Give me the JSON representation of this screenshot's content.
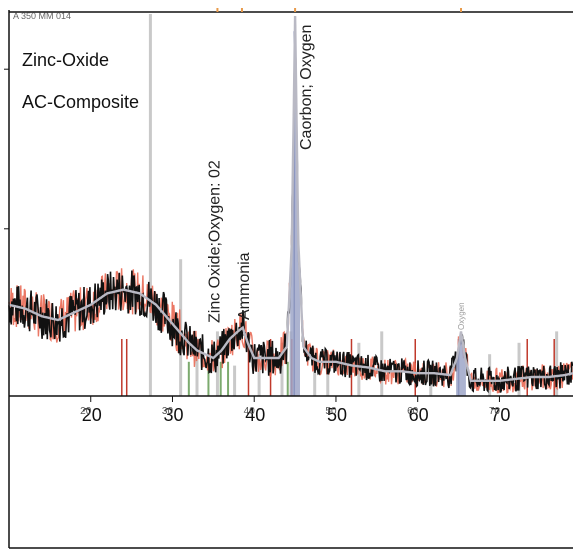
{
  "chart_data": {
    "type": "line",
    "header_label": "A 350 MM 014",
    "legend": [
      "Zinc-Oxide",
      "AC-Composite"
    ],
    "xlim": [
      10,
      79
    ],
    "ylim": [
      0,
      100
    ],
    "x_ticks": [
      20,
      30,
      40,
      50,
      60,
      70
    ],
    "x_tick_labels": [
      "20",
      "30",
      "40",
      "50",
      "60",
      "70"
    ],
    "minor_x_ticks": [
      20,
      30,
      40,
      50,
      60,
      70
    ],
    "minor_x_tick_labels": [
      "20",
      "30",
      "40",
      "50",
      "60",
      "70"
    ],
    "series": [],
    "annotations": [
      {
        "x": 45.0,
        "text": "Caorbon; Oxygen",
        "color": "#222222"
      },
      {
        "x": 35.0,
        "text": "Zinc Oxide;Oxygen: 02",
        "color": "#222222"
      },
      {
        "x": 38.6,
        "text": "Ammonia",
        "color": "#222222"
      },
      {
        "x": 65.3,
        "text": "Oxygen",
        "color": "#999999"
      }
    ],
    "smooth_curve": [
      [
        10,
        24
      ],
      [
        12,
        23
      ],
      [
        14,
        21
      ],
      [
        16,
        20
      ],
      [
        18,
        22
      ],
      [
        20,
        24
      ],
      [
        22,
        27
      ],
      [
        24,
        28
      ],
      [
        26,
        27
      ],
      [
        28,
        24
      ],
      [
        30,
        19
      ],
      [
        32,
        14
      ],
      [
        33,
        12
      ],
      [
        34,
        11
      ],
      [
        35,
        10
      ],
      [
        36,
        12
      ],
      [
        37,
        15
      ],
      [
        38,
        17
      ],
      [
        38.6,
        18
      ],
      [
        39.2,
        14
      ],
      [
        40,
        10
      ],
      [
        41,
        10
      ],
      [
        42,
        10
      ],
      [
        43,
        10
      ],
      [
        44,
        13
      ],
      [
        44.6,
        40
      ],
      [
        45.0,
        100
      ],
      [
        45.4,
        40
      ],
      [
        46,
        13
      ],
      [
        47,
        10
      ],
      [
        48,
        9
      ],
      [
        50,
        9
      ],
      [
        52,
        8
      ],
      [
        54,
        7.5
      ],
      [
        56,
        6.5
      ],
      [
        58,
        6.5
      ],
      [
        60,
        6
      ],
      [
        62,
        6
      ],
      [
        64,
        5.5
      ],
      [
        64.8,
        10
      ],
      [
        65.3,
        17
      ],
      [
        65.8,
        10
      ],
      [
        66.5,
        4
      ],
      [
        68,
        4
      ],
      [
        70,
        4
      ],
      [
        72,
        4.5
      ],
      [
        74,
        5
      ],
      [
        76,
        5
      ],
      [
        78,
        5.5
      ],
      [
        79,
        6
      ]
    ],
    "reference_lines": {
      "light_gray": [
        27.3,
        31.0,
        33.0,
        35.5,
        37.6,
        40.6,
        43.4,
        44.5,
        47.4,
        49.0,
        52.8,
        55.6,
        61.6,
        68.8,
        72.4,
        77.0
      ],
      "green": [
        32.0,
        34.4,
        35.9,
        36.8,
        44.1
      ],
      "red": [
        23.8,
        24.4,
        39.3,
        42.0,
        44.6,
        51.9,
        59.7,
        73.4,
        76.7
      ],
      "dark_blue": [
        44.9,
        65.0
      ]
    },
    "colors": {
      "raw_data": "#111111",
      "raw_data_edge": "#e8604a",
      "smooth": "#b9b9c4",
      "peak_fill": "#9ea6c8",
      "ref_gray": "#c9c9c9",
      "ref_green": "#7caa6e",
      "ref_red": "#c0392b",
      "ref_blue": "#2c3e8c",
      "top_marker": "#e89a4a",
      "axis": "#111111"
    },
    "top_markers": [
      35.5,
      38.5,
      45.0,
      65.3
    ]
  }
}
